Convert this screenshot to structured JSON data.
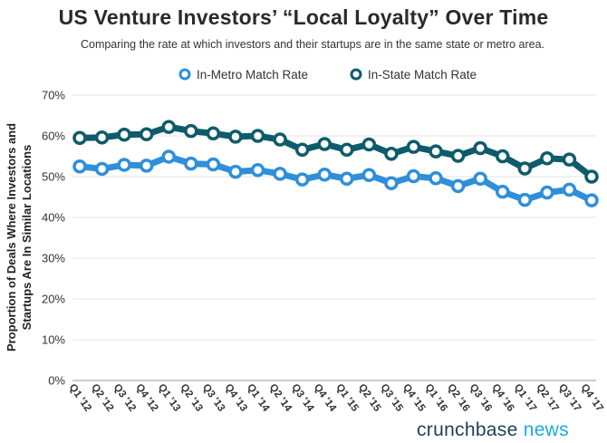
{
  "chart_data": {
    "type": "line",
    "title": "US Venture Investors’ “Local Loyalty” Over Time",
    "subtitle": "Comparing the rate at which investors and their startups are in the same state or metro area.",
    "ylabel_line1": "Proportion of Deals Where Investors and",
    "ylabel_line2": "Startups Are In Similar Locations",
    "xlabel": "",
    "ylim": [
      0,
      70
    ],
    "yticks": [
      "0%",
      "10%",
      "20%",
      "30%",
      "40%",
      "50%",
      "60%",
      "70%"
    ],
    "grid": true,
    "legend_position": "top-center",
    "categories": [
      "Q1 '12",
      "Q2 '12",
      "Q3 '12",
      "Q4 '12",
      "Q1 '13",
      "Q2 '13",
      "Q3 '13",
      "Q4 '13",
      "Q1 '14",
      "Q2 '14",
      "Q3 '14",
      "Q4 '14",
      "Q1 '15",
      "Q2 '15",
      "Q3 '15",
      "Q4 '15",
      "Q1 '16",
      "Q2 '16",
      "Q3 '16",
      "Q4 '16",
      "Q1 '17",
      "Q2 '17",
      "Q3 '17",
      "Q4 '17"
    ],
    "series": [
      {
        "name": "In-Metro Match Rate",
        "color": "#2f8fd8",
        "values": [
          52.5,
          51.9,
          52.9,
          52.7,
          54.9,
          53.2,
          53.0,
          51.2,
          51.6,
          50.7,
          49.3,
          50.5,
          49.5,
          50.4,
          48.4,
          50.1,
          49.6,
          47.7,
          49.5,
          46.3,
          44.3,
          46.1,
          46.8,
          44.2
        ]
      },
      {
        "name": "In-State Match Rate",
        "color": "#0e5b6b",
        "values": [
          59.5,
          59.6,
          60.3,
          60.4,
          62.2,
          61.2,
          60.6,
          59.8,
          60.0,
          59.1,
          56.6,
          58.0,
          56.6,
          57.9,
          55.6,
          57.3,
          56.2,
          55.1,
          57.0,
          55.0,
          52.0,
          54.5,
          54.2,
          50.0
        ]
      }
    ]
  },
  "branding": {
    "crunchbase": "crunchbase",
    "news": "news"
  }
}
